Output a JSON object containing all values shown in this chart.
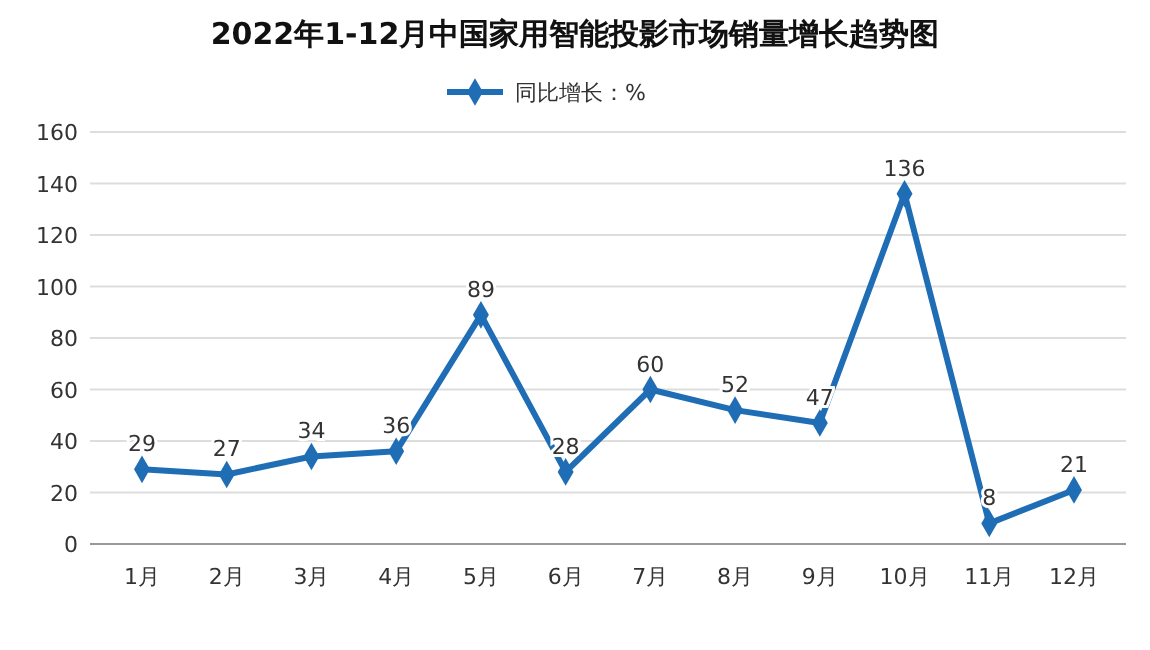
{
  "chart_data": {
    "type": "line",
    "title": "2022年1-12月中国家用智能投影市场销量增长趋势图",
    "categories": [
      "1月",
      "2月",
      "3月",
      "4月",
      "5月",
      "6月",
      "7月",
      "8月",
      "9月",
      "10月",
      "11月",
      "12月"
    ],
    "series": [
      {
        "name": "同比增长：%",
        "color": "#1f6db5",
        "values": [
          29,
          27,
          34,
          36,
          89,
          28,
          60,
          52,
          47,
          136,
          8,
          21
        ]
      }
    ],
    "ylim": [
      0,
      160
    ],
    "yticks": [
      0,
      20,
      40,
      60,
      80,
      100,
      120,
      140,
      160
    ],
    "grid": "y",
    "legend": "top",
    "marker": "diamond",
    "line_style": "solid",
    "data_labels": true
  }
}
